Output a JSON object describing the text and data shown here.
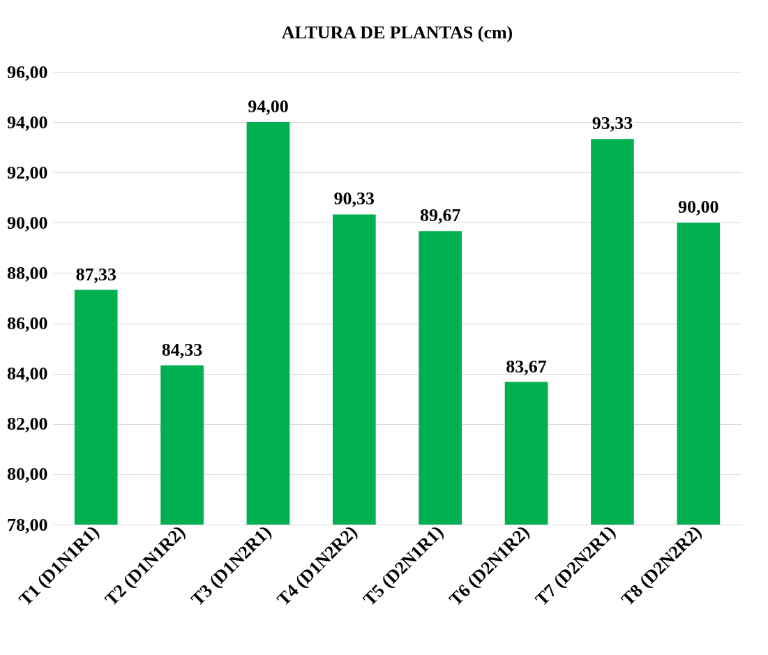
{
  "chart_data": {
    "type": "bar",
    "title": "ALTURA DE PLANTAS (cm)",
    "categories": [
      "T1 (D1N1R1)",
      "T2 (D1N1R2)",
      "T3 (D1N2R1)",
      "T4 (D1N2R2)",
      "T5 (D2N1R1)",
      "T6 (D2N1R2)",
      "T7 (D2N2R1)",
      "T8 (D2N2R2)"
    ],
    "values": [
      87.33,
      84.33,
      94.0,
      90.33,
      89.67,
      83.67,
      93.33,
      90.0
    ],
    "value_labels": [
      "87,33",
      "84,33",
      "94,00",
      "90,33",
      "89,67",
      "83,67",
      "93,33",
      "90,00"
    ],
    "color": "#00b050",
    "ylim": [
      78,
      96
    ],
    "yticks": [
      {
        "value": 78,
        "label": "78,00"
      },
      {
        "value": 80,
        "label": "80,00"
      },
      {
        "value": 82,
        "label": "82,00"
      },
      {
        "value": 84,
        "label": "84,00"
      },
      {
        "value": 86,
        "label": "86,00"
      },
      {
        "value": 88,
        "label": "88,00"
      },
      {
        "value": 90,
        "label": "90,00"
      },
      {
        "value": 92,
        "label": "92,00"
      },
      {
        "value": 94,
        "label": "94,00"
      },
      {
        "value": 96,
        "label": "96,00"
      }
    ],
    "grid": "y"
  }
}
